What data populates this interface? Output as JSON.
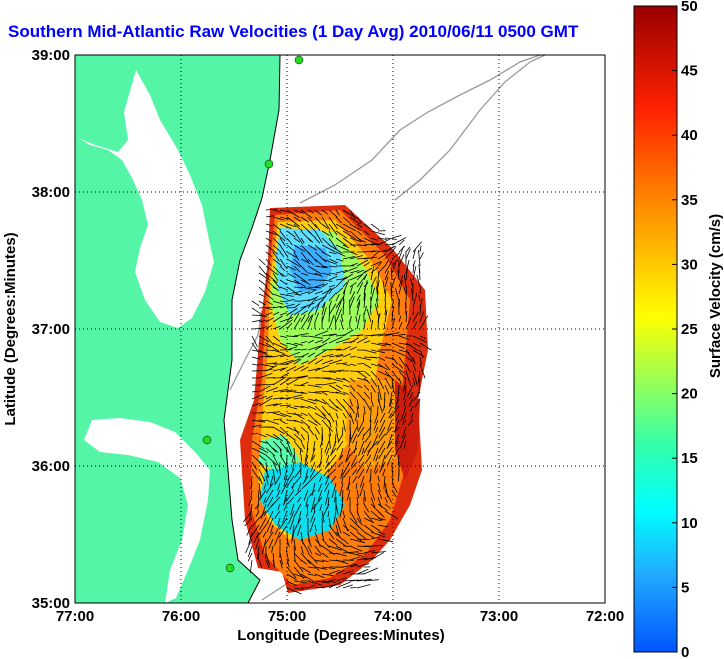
{
  "title": "Southern Mid-Atlantic Raw Velocities (1 Day Avg) 2010/06/11 0500 GMT",
  "map": {
    "xlabel": "Longitude (Degrees:Minutes)",
    "ylabel": "Latitude (Degrees:Minutes)",
    "lon_ticks": [
      "77:00",
      "76:00",
      "75:00",
      "74:00",
      "73:00",
      "72:00"
    ],
    "lat_ticks": [
      "39:00",
      "38:00",
      "37:00",
      "36:00",
      "35:00"
    ],
    "lon_range": [
      -77,
      -72
    ],
    "lat_range": [
      35,
      39
    ],
    "grid": "dotted",
    "land_color": "#55f5a8",
    "station_color": "#22dd22"
  },
  "colorbar": {
    "label": "Surface Velocity (cm/s)",
    "min": 0,
    "max": 50,
    "ticks": [
      "0",
      "5",
      "10",
      "15",
      "20",
      "25",
      "30",
      "35",
      "40",
      "45",
      "50"
    ]
  }
}
